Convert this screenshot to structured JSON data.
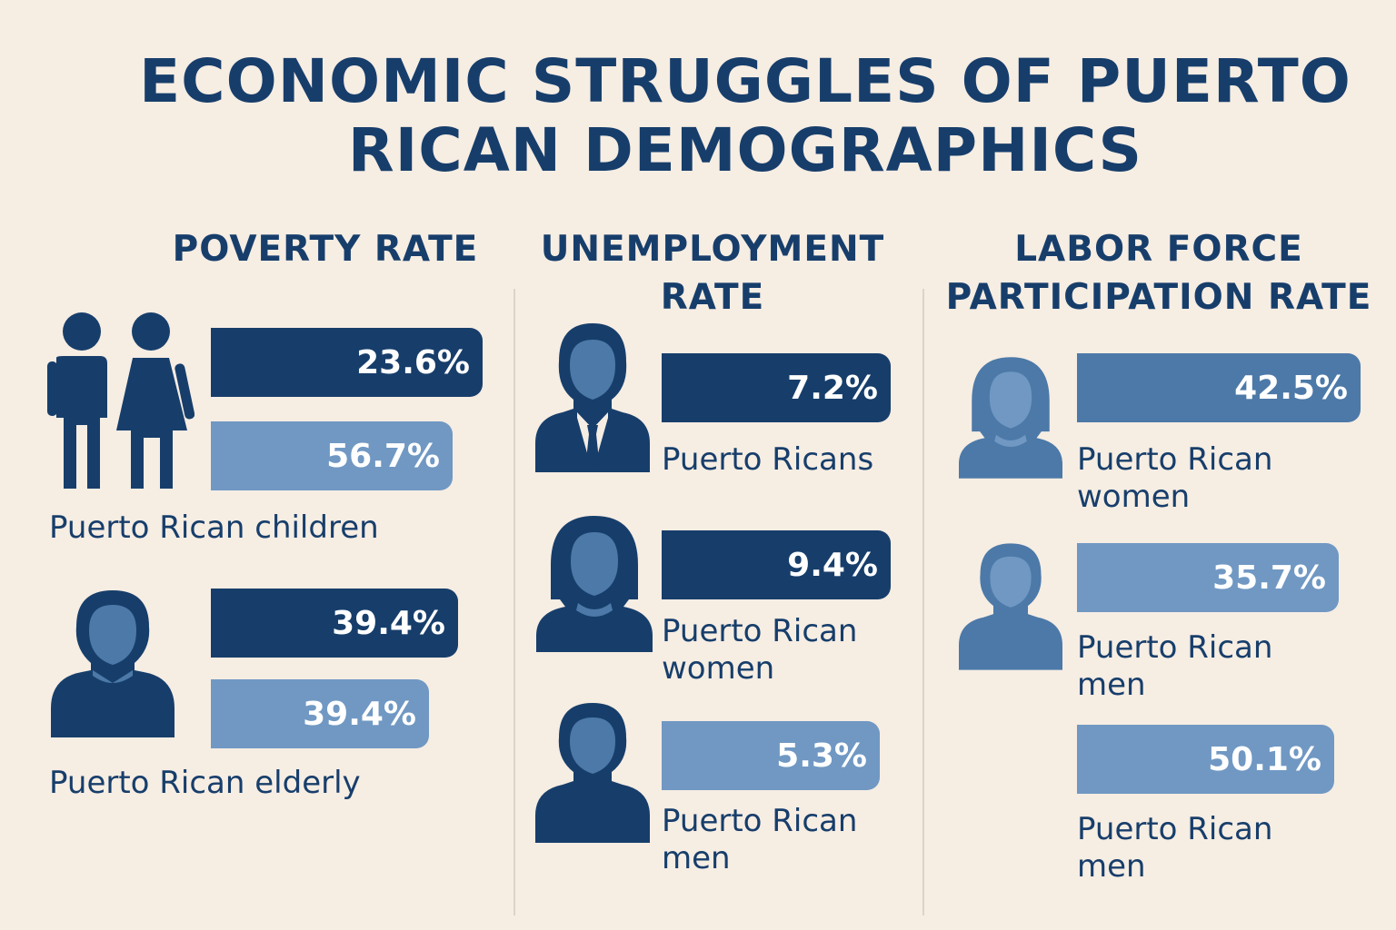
{
  "title": "ECONOMIC STRUGGLES OF PUERTO RICAN DEMOGRAPHICS",
  "colors": {
    "background": "#f6ede3",
    "text": "#173e6b",
    "bar_dark": "#173e6b",
    "bar_mid": "#4c79a8",
    "bar_light": "#7098c3"
  },
  "chart_data": [
    {
      "type": "bar",
      "orientation": "horizontal",
      "title": "POVERTY RATE",
      "series": [
        {
          "label": "Puerto Rican children",
          "icon": "couple-icon",
          "values": [
            23.6,
            56.7
          ],
          "value_labels": [
            "23.6%",
            "56.7%"
          ]
        },
        {
          "label": "Puerto Rican elderly",
          "icon": "person-icon",
          "values": [
            39.4,
            39.4
          ],
          "value_labels": [
            "39.4%",
            "39.4%"
          ]
        }
      ]
    },
    {
      "type": "bar",
      "orientation": "horizontal",
      "title": "UNEMPLOYMENT RATE",
      "items": [
        {
          "label": "Puerto Ricans",
          "icon": "businessman-icon",
          "value": 7.2,
          "value_label": "7.2%"
        },
        {
          "label": "Puerto Rican women",
          "icon": "woman-icon",
          "value": 9.4,
          "value_label": "9.4%"
        },
        {
          "label": "Puerto Rican men",
          "icon": "man-icon",
          "value": 5.3,
          "value_label": "5.3%"
        }
      ]
    },
    {
      "type": "bar",
      "orientation": "horizontal",
      "title": "LABOR FORCE PARTICIPATION RATE",
      "items": [
        {
          "label": "Puerto Rican women",
          "icon": "woman-icon",
          "value": 42.5,
          "value_label": "42.5%"
        },
        {
          "label": "Puerto Rican men",
          "icon": "man-icon",
          "value": 35.7,
          "value_label": "35.7%"
        },
        {
          "label": "Puerto Rican men",
          "icon": "",
          "value": 50.1,
          "value_label": "50.1%"
        }
      ]
    }
  ]
}
